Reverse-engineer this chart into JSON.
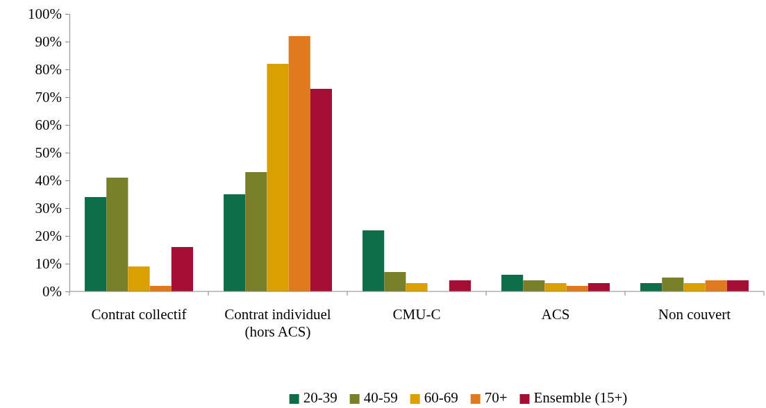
{
  "chart_data": {
    "type": "bar",
    "categories": [
      "Contrat collectif",
      "Contrat individuel (hors ACS)",
      "CMU-C",
      "ACS",
      "Non couvert"
    ],
    "series": [
      {
        "name": "20-39",
        "color": "#0e6e4a",
        "values": [
          34,
          35,
          22,
          6,
          3
        ]
      },
      {
        "name": "40-59",
        "color": "#7a7f2a",
        "values": [
          41,
          43,
          7,
          4,
          5
        ]
      },
      {
        "name": "60-69",
        "color": "#d9a000",
        "values": [
          9,
          82,
          3,
          3,
          3
        ]
      },
      {
        "name": "70+",
        "color": "#e07a1f",
        "values": [
          2,
          92,
          0,
          2,
          4
        ]
      },
      {
        "name": "Ensemble (15+)",
        "color": "#a50d32",
        "values": [
          16,
          73,
          4,
          3,
          4
        ]
      }
    ],
    "ylim": [
      0,
      100
    ],
    "yticks": [
      {
        "value": 0,
        "label": "0%"
      },
      {
        "value": 10,
        "label": "10%"
      },
      {
        "value": 20,
        "label": "20%"
      },
      {
        "value": 30,
        "label": "30%"
      },
      {
        "value": 40,
        "label": "40%"
      },
      {
        "value": 50,
        "label": "50%"
      },
      {
        "value": 60,
        "label": "60%"
      },
      {
        "value": 70,
        "label": "70%"
      },
      {
        "value": 80,
        "label": "80%"
      },
      {
        "value": 90,
        "label": "90%"
      },
      {
        "value": 100,
        "label": "100%"
      }
    ],
    "grid": false,
    "legend": "bottom"
  }
}
